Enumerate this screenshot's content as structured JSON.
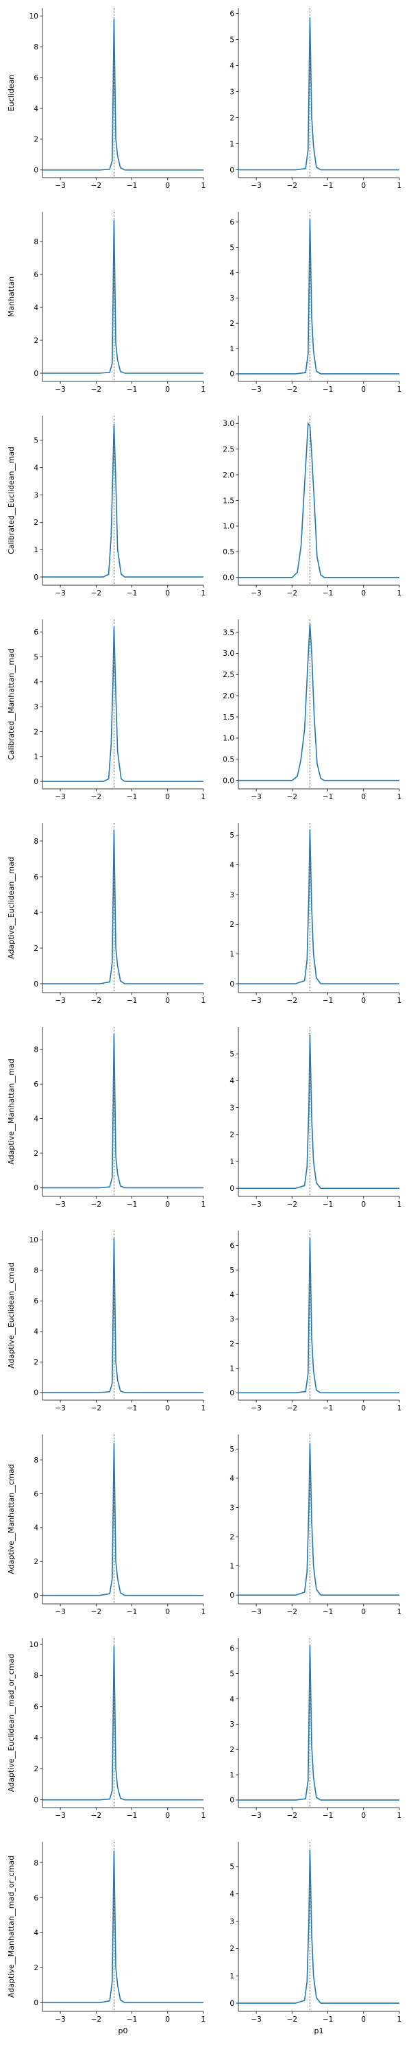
{
  "series_color": "#1f77b4",
  "chart_data": [
    {
      "type": "line",
      "row": 0,
      "col": 0,
      "ylabel": "Euclidean",
      "xlabel": "",
      "xlim": [
        -3.5,
        1
      ],
      "ylim": [
        -0.5,
        10.5
      ],
      "yticks": [
        0,
        2,
        4,
        6,
        8,
        10
      ],
      "xticks": [
        -3,
        -2,
        -1,
        0,
        1
      ],
      "ref_x": -1.5,
      "x": [
        -3.5,
        -1.9,
        -1.62,
        -1.55,
        -1.5,
        -1.45,
        -1.4,
        -1.32,
        -1.2,
        -0.9,
        1
      ],
      "y": [
        0,
        0,
        0.05,
        0.6,
        9.8,
        2.0,
        0.9,
        0.15,
        0,
        0,
        0
      ]
    },
    {
      "type": "line",
      "row": 0,
      "col": 1,
      "ylabel": "",
      "xlabel": "",
      "xlim": [
        -3.5,
        1
      ],
      "ylim": [
        -0.3,
        6.2
      ],
      "yticks": [
        0,
        1,
        2,
        3,
        4,
        5,
        6
      ],
      "xticks": [
        -3,
        -2,
        -1,
        0,
        1
      ],
      "ref_x": -1.5,
      "x": [
        -3.5,
        -1.9,
        -1.62,
        -1.55,
        -1.5,
        -1.45,
        -1.4,
        -1.32,
        -1.2,
        -0.9,
        1
      ],
      "y": [
        0,
        0,
        0.05,
        0.8,
        5.85,
        2.0,
        0.9,
        0.1,
        0,
        0,
        0
      ]
    },
    {
      "type": "line",
      "row": 1,
      "col": 0,
      "ylabel": "Manhattan",
      "xlabel": "",
      "xlim": [
        -3.5,
        1
      ],
      "ylim": [
        -0.5,
        9.8
      ],
      "yticks": [
        0,
        2,
        4,
        6,
        8
      ],
      "xticks": [
        -3,
        -2,
        -1,
        0,
        1
      ],
      "ref_x": -1.5,
      "x": [
        -3.5,
        -1.9,
        -1.62,
        -1.55,
        -1.5,
        -1.45,
        -1.4,
        -1.32,
        -1.2,
        -0.9,
        1
      ],
      "y": [
        0,
        0,
        0.05,
        0.6,
        9.3,
        1.8,
        0.8,
        0.1,
        0,
        0,
        0
      ]
    },
    {
      "type": "line",
      "row": 1,
      "col": 1,
      "ylabel": "",
      "xlabel": "",
      "xlim": [
        -3.5,
        1
      ],
      "ylim": [
        -0.3,
        6.4
      ],
      "yticks": [
        0,
        1,
        2,
        3,
        4,
        5,
        6
      ],
      "xticks": [
        -3,
        -2,
        -1,
        0,
        1
      ],
      "ref_x": -1.5,
      "x": [
        -3.5,
        -1.9,
        -1.62,
        -1.55,
        -1.5,
        -1.45,
        -1.4,
        -1.32,
        -1.2,
        -0.9,
        1
      ],
      "y": [
        0,
        0,
        0.05,
        0.8,
        6.1,
        2.2,
        0.9,
        0.1,
        0,
        0,
        0
      ]
    },
    {
      "type": "line",
      "row": 2,
      "col": 0,
      "ylabel": "Calibrated__Euclidean__mad",
      "xlabel": "",
      "xlim": [
        -3.5,
        1
      ],
      "ylim": [
        -0.3,
        5.9
      ],
      "yticks": [
        0,
        1,
        2,
        3,
        4,
        5
      ],
      "xticks": [
        -3,
        -2,
        -1,
        0,
        1
      ],
      "ref_x": -1.5,
      "x": [
        -3.5,
        -1.8,
        -1.65,
        -1.58,
        -1.53,
        -1.5,
        -1.45,
        -1.4,
        -1.3,
        -1.2,
        1
      ],
      "y": [
        0,
        0,
        0.1,
        1.5,
        4.0,
        5.6,
        3.5,
        1.0,
        0.1,
        0,
        0
      ]
    },
    {
      "type": "line",
      "row": 2,
      "col": 1,
      "ylabel": "",
      "xlabel": "",
      "xlim": [
        -3.5,
        1
      ],
      "ylim": [
        -0.15,
        3.15
      ],
      "yticks": [
        0,
        0.5,
        1.0,
        1.5,
        2.0,
        2.5,
        3.0
      ],
      "yfmt": 1,
      "xticks": [
        -3,
        -2,
        -1,
        0,
        1
      ],
      "ref_x": -1.5,
      "x": [
        -3.5,
        -2.0,
        -1.85,
        -1.75,
        -1.65,
        -1.55,
        -1.5,
        -1.45,
        -1.38,
        -1.3,
        -1.2,
        -1.1,
        1
      ],
      "y": [
        0,
        0,
        0.1,
        0.6,
        1.8,
        3.0,
        2.95,
        2.4,
        1.5,
        0.4,
        0.05,
        0,
        0
      ]
    },
    {
      "type": "line",
      "row": 3,
      "col": 0,
      "ylabel": "Calibrated__Manhattan__mad",
      "xlabel": "",
      "xlim": [
        -3.5,
        1
      ],
      "ylim": [
        -0.3,
        6.5
      ],
      "yticks": [
        0,
        1,
        2,
        3,
        4,
        5,
        6
      ],
      "xticks": [
        -3,
        -2,
        -1,
        0,
        1
      ],
      "ref_x": -1.5,
      "x": [
        -3.5,
        -1.8,
        -1.65,
        -1.58,
        -1.53,
        -1.5,
        -1.45,
        -1.4,
        -1.3,
        -1.2,
        1
      ],
      "y": [
        0,
        0,
        0.1,
        1.5,
        4.0,
        6.2,
        3.5,
        1.2,
        0.1,
        0,
        0
      ]
    },
    {
      "type": "line",
      "row": 3,
      "col": 1,
      "ylabel": "",
      "xlabel": "",
      "xlim": [
        -3.5,
        1
      ],
      "ylim": [
        -0.2,
        3.8
      ],
      "yticks": [
        0,
        0.5,
        1.0,
        1.5,
        2.0,
        2.5,
        3.0,
        3.5
      ],
      "yfmt": 1,
      "xticks": [
        -3,
        -2,
        -1,
        0,
        1
      ],
      "ref_x": -1.5,
      "x": [
        -3.5,
        -2.0,
        -1.85,
        -1.75,
        -1.65,
        -1.55,
        -1.5,
        -1.45,
        -1.38,
        -1.3,
        -1.2,
        -1.1,
        1
      ],
      "y": [
        0,
        0,
        0.1,
        0.5,
        1.2,
        2.9,
        3.7,
        3.0,
        1.5,
        0.4,
        0.05,
        0,
        0
      ]
    },
    {
      "type": "line",
      "row": 4,
      "col": 0,
      "ylabel": "Adaptive__Euclidean__mad",
      "xlabel": "",
      "xlim": [
        -3.5,
        1
      ],
      "ylim": [
        -0.5,
        9.0
      ],
      "yticks": [
        0,
        2,
        4,
        6,
        8
      ],
      "xticks": [
        -3,
        -2,
        -1,
        0,
        1
      ],
      "ref_x": -1.5,
      "x": [
        -3.5,
        -1.9,
        -1.62,
        -1.55,
        -1.5,
        -1.45,
        -1.4,
        -1.32,
        -1.2,
        -0.9,
        1
      ],
      "y": [
        0,
        0,
        0.1,
        1.2,
        8.6,
        2.0,
        1.0,
        0.15,
        0,
        0,
        0
      ]
    },
    {
      "type": "line",
      "row": 4,
      "col": 1,
      "ylabel": "",
      "xlabel": "",
      "xlim": [
        -3.5,
        1
      ],
      "ylim": [
        -0.3,
        5.4
      ],
      "yticks": [
        0,
        1,
        2,
        3,
        4,
        5
      ],
      "xticks": [
        -3,
        -2,
        -1,
        0,
        1
      ],
      "ref_x": -1.5,
      "x": [
        -3.5,
        -1.9,
        -1.65,
        -1.58,
        -1.53,
        -1.5,
        -1.45,
        -1.4,
        -1.32,
        -1.2,
        1
      ],
      "y": [
        0,
        0,
        0.1,
        0.8,
        3.0,
        5.2,
        2.5,
        1.0,
        0.2,
        0,
        0
      ]
    },
    {
      "type": "line",
      "row": 5,
      "col": 0,
      "ylabel": "Adaptive__Manhattan__mad",
      "xlabel": "",
      "xlim": [
        -3.5,
        1
      ],
      "ylim": [
        -0.5,
        9.3
      ],
      "yticks": [
        0,
        2,
        4,
        6,
        8
      ],
      "xticks": [
        -3,
        -2,
        -1,
        0,
        1
      ],
      "ref_x": -1.5,
      "x": [
        -3.5,
        -1.9,
        -1.62,
        -1.55,
        -1.5,
        -1.45,
        -1.4,
        -1.32,
        -1.2,
        -0.9,
        1
      ],
      "y": [
        0,
        0,
        0.05,
        0.6,
        8.9,
        1.8,
        0.8,
        0.1,
        0,
        0,
        0
      ]
    },
    {
      "type": "line",
      "row": 5,
      "col": 1,
      "ylabel": "",
      "xlabel": "",
      "xlim": [
        -3.5,
        1
      ],
      "ylim": [
        -0.3,
        6.0
      ],
      "yticks": [
        0,
        1,
        2,
        3,
        4,
        5
      ],
      "xticks": [
        -3,
        -2,
        -1,
        0,
        1
      ],
      "ref_x": -1.5,
      "x": [
        -3.5,
        -1.9,
        -1.65,
        -1.58,
        -1.53,
        -1.5,
        -1.45,
        -1.4,
        -1.32,
        -1.2,
        1
      ],
      "y": [
        0,
        0,
        0.1,
        0.8,
        3.0,
        5.7,
        2.6,
        1.0,
        0.2,
        0,
        0
      ]
    },
    {
      "type": "line",
      "row": 6,
      "col": 0,
      "ylabel": "Adaptive__Euclidean__cmad",
      "xlabel": "",
      "xlim": [
        -3.5,
        1
      ],
      "ylim": [
        -0.5,
        10.6
      ],
      "yticks": [
        0,
        2,
        4,
        6,
        8,
        10
      ],
      "xticks": [
        -3,
        -2,
        -1,
        0,
        1
      ],
      "ref_x": -1.5,
      "x": [
        -3.5,
        -1.9,
        -1.62,
        -1.55,
        -1.5,
        -1.45,
        -1.4,
        -1.32,
        -1.2,
        -0.9,
        1
      ],
      "y": [
        0,
        0,
        0.05,
        0.6,
        10.1,
        2.0,
        0.8,
        0.1,
        0,
        0,
        0
      ]
    },
    {
      "type": "line",
      "row": 6,
      "col": 1,
      "ylabel": "",
      "xlabel": "",
      "xlim": [
        -3.5,
        1
      ],
      "ylim": [
        -0.3,
        6.6
      ],
      "yticks": [
        0,
        1,
        2,
        3,
        4,
        5,
        6
      ],
      "xticks": [
        -3,
        -2,
        -1,
        0,
        1
      ],
      "ref_x": -1.5,
      "x": [
        -3.5,
        -1.9,
        -1.62,
        -1.55,
        -1.5,
        -1.45,
        -1.4,
        -1.32,
        -1.2,
        -0.9,
        1
      ],
      "y": [
        0,
        0,
        0.05,
        0.8,
        6.3,
        2.2,
        0.9,
        0.1,
        0,
        0,
        0
      ]
    },
    {
      "type": "line",
      "row": 7,
      "col": 0,
      "ylabel": "Adaptive__Manhattan__cmad",
      "xlabel": "",
      "xlim": [
        -3.5,
        1
      ],
      "ylim": [
        -0.5,
        9.5
      ],
      "yticks": [
        0,
        2,
        4,
        6,
        8
      ],
      "xticks": [
        -3,
        -2,
        -1,
        0,
        1
      ],
      "ref_x": -1.5,
      "x": [
        -3.5,
        -1.9,
        -1.62,
        -1.55,
        -1.5,
        -1.45,
        -1.4,
        -1.32,
        -1.2,
        -0.9,
        1
      ],
      "y": [
        0,
        0,
        0.1,
        1.0,
        9.0,
        2.0,
        1.0,
        0.15,
        0,
        0,
        0
      ]
    },
    {
      "type": "line",
      "row": 7,
      "col": 1,
      "ylabel": "",
      "xlabel": "",
      "xlim": [
        -3.5,
        1
      ],
      "ylim": [
        -0.3,
        5.5
      ],
      "yticks": [
        0,
        1,
        2,
        3,
        4,
        5
      ],
      "xticks": [
        -3,
        -2,
        -1,
        0,
        1
      ],
      "ref_x": -1.5,
      "x": [
        -3.5,
        -1.9,
        -1.65,
        -1.58,
        -1.53,
        -1.5,
        -1.45,
        -1.4,
        -1.32,
        -1.2,
        1
      ],
      "y": [
        0,
        0,
        0.1,
        0.8,
        3.0,
        5.2,
        2.5,
        1.0,
        0.2,
        0,
        0
      ]
    },
    {
      "type": "line",
      "row": 8,
      "col": 0,
      "ylabel": "Adaptive__Euclidean__mad_or_cmad",
      "xlabel": "",
      "xlim": [
        -3.5,
        1
      ],
      "ylim": [
        -0.5,
        10.4
      ],
      "yticks": [
        0,
        2,
        4,
        6,
        8,
        10
      ],
      "xticks": [
        -3,
        -2,
        -1,
        0,
        1
      ],
      "ref_x": -1.5,
      "x": [
        -3.5,
        -1.9,
        -1.62,
        -1.55,
        -1.5,
        -1.45,
        -1.4,
        -1.32,
        -1.2,
        -0.9,
        1
      ],
      "y": [
        0,
        0,
        0.05,
        0.6,
        9.9,
        2.0,
        0.8,
        0.1,
        0,
        0,
        0
      ]
    },
    {
      "type": "line",
      "row": 8,
      "col": 1,
      "ylabel": "",
      "xlabel": "",
      "xlim": [
        -3.5,
        1
      ],
      "ylim": [
        -0.3,
        6.4
      ],
      "yticks": [
        0,
        1,
        2,
        3,
        4,
        5,
        6
      ],
      "xticks": [
        -3,
        -2,
        -1,
        0,
        1
      ],
      "ref_x": -1.5,
      "x": [
        -3.5,
        -1.9,
        -1.62,
        -1.55,
        -1.5,
        -1.45,
        -1.4,
        -1.32,
        -1.2,
        -0.9,
        1
      ],
      "y": [
        0,
        0,
        0.05,
        0.8,
        6.1,
        2.1,
        0.9,
        0.1,
        0,
        0,
        0
      ]
    },
    {
      "type": "line",
      "row": 9,
      "col": 0,
      "ylabel": "Adaptive__Manhattan__mad_or_cmad",
      "xlabel": "p0",
      "xlim": [
        -3.5,
        1
      ],
      "ylim": [
        -0.5,
        9.2
      ],
      "yticks": [
        0,
        2,
        4,
        6,
        8
      ],
      "xticks": [
        -3,
        -2,
        -1,
        0,
        1
      ],
      "ref_x": -1.5,
      "x": [
        -3.5,
        -1.9,
        -1.62,
        -1.55,
        -1.5,
        -1.45,
        -1.4,
        -1.32,
        -1.2,
        -0.9,
        1
      ],
      "y": [
        0,
        0,
        0.1,
        1.2,
        8.7,
        2.0,
        1.0,
        0.15,
        0,
        0,
        0
      ]
    },
    {
      "type": "line",
      "row": 9,
      "col": 1,
      "ylabel": "",
      "xlabel": "p1",
      "xlim": [
        -3.5,
        1
      ],
      "ylim": [
        -0.3,
        5.9
      ],
      "yticks": [
        0,
        1,
        2,
        3,
        4,
        5
      ],
      "xticks": [
        -3,
        -2,
        -1,
        0,
        1
      ],
      "ref_x": -1.5,
      "x": [
        -3.5,
        -1.9,
        -1.65,
        -1.58,
        -1.53,
        -1.5,
        -1.45,
        -1.4,
        -1.32,
        -1.2,
        1
      ],
      "y": [
        0,
        0,
        0.1,
        0.8,
        3.0,
        5.6,
        2.5,
        1.0,
        0.2,
        0,
        0
      ]
    }
  ]
}
